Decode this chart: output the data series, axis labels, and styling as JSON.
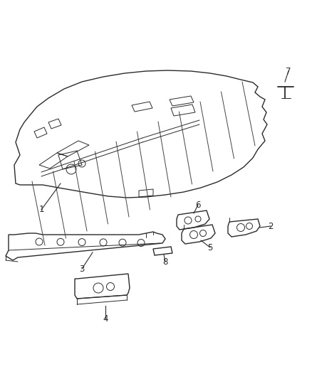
{
  "bg_color": "#ffffff",
  "line_color": "#2a2a2a",
  "fig_width": 4.39,
  "fig_height": 5.33,
  "dpi": 100,
  "label_fontsize": 8.5
}
